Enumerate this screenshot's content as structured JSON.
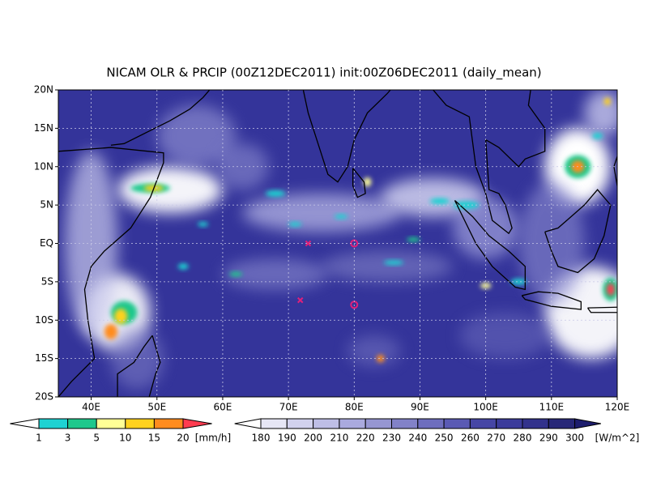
{
  "title": "NICAM OLR & PRCIP (00Z12DEC2011) init:00Z06DEC2011 (daily_mean)",
  "map": {
    "lat_labels": [
      "20N",
      "15N",
      "10N",
      "5N",
      "EQ",
      "5S",
      "10S",
      "15S",
      "20S"
    ],
    "lon_labels": [
      "40E",
      "50E",
      "60E",
      "70E",
      "80E",
      "90E",
      "100E",
      "110E",
      "120E"
    ]
  },
  "precip_colorbar": {
    "labels": [
      1,
      3,
      5,
      10,
      15,
      20
    ],
    "unit": "[mm/h]",
    "colors": [
      "#ffffff",
      "#1ed2d2",
      "#1ec88c",
      "#ffff96",
      "#ffd21e",
      "#ff8c1e",
      "#ff3c50"
    ]
  },
  "olr_colorbar": {
    "labels": [
      180,
      190,
      200,
      210,
      220,
      230,
      240,
      250,
      260,
      270,
      280,
      290,
      300
    ],
    "unit": "[W/m^2]",
    "colors": [
      "#ffffff",
      "#e6e6f5",
      "#d2d2ee",
      "#bebee6",
      "#aaaade",
      "#9696d2",
      "#8282c8",
      "#6e6ebe",
      "#5a5ab4",
      "#4646a5",
      "#3c3c9b",
      "#32328c",
      "#282878",
      "#1e1e6e"
    ]
  }
}
